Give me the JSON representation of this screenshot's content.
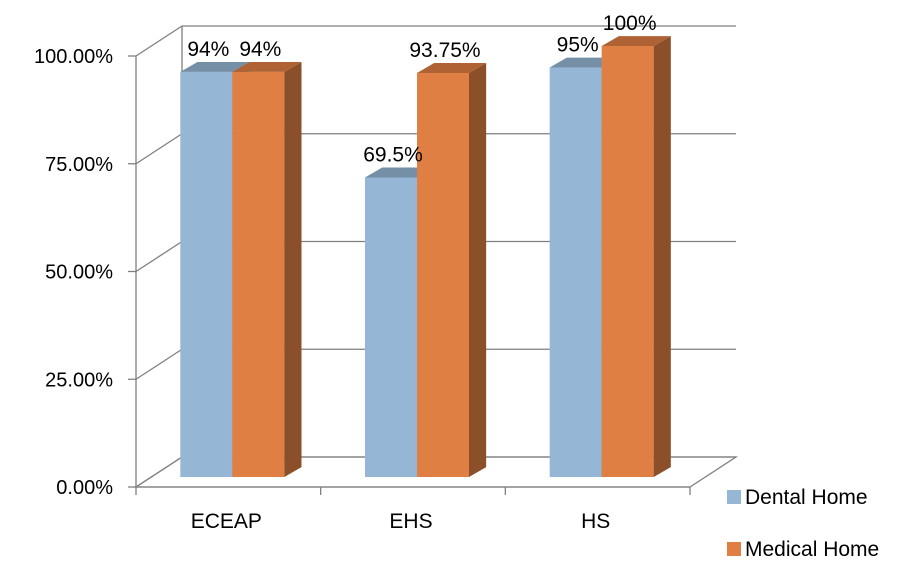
{
  "chart_data": {
    "type": "bar",
    "categories": [
      "ECEAP",
      "EHS",
      "HS"
    ],
    "series": [
      {
        "name": "Dental Home",
        "values": [
          94,
          69.5,
          95
        ],
        "labels": [
          "94%",
          "69.5%",
          "95%"
        ],
        "color": "#95B7D5"
      },
      {
        "name": "Medical Home",
        "values": [
          94,
          93.75,
          100
        ],
        "labels": [
          "94%",
          "93.75%",
          "100%"
        ],
        "color": "#E07F44"
      }
    ],
    "yticks": [
      "0.00%",
      "25.00%",
      "50.00%",
      "75.00%",
      "100.00%"
    ],
    "ylim": [
      0,
      100
    ],
    "grid": true,
    "legend_position": "bottom-right",
    "style": "3d-clustered-column"
  }
}
